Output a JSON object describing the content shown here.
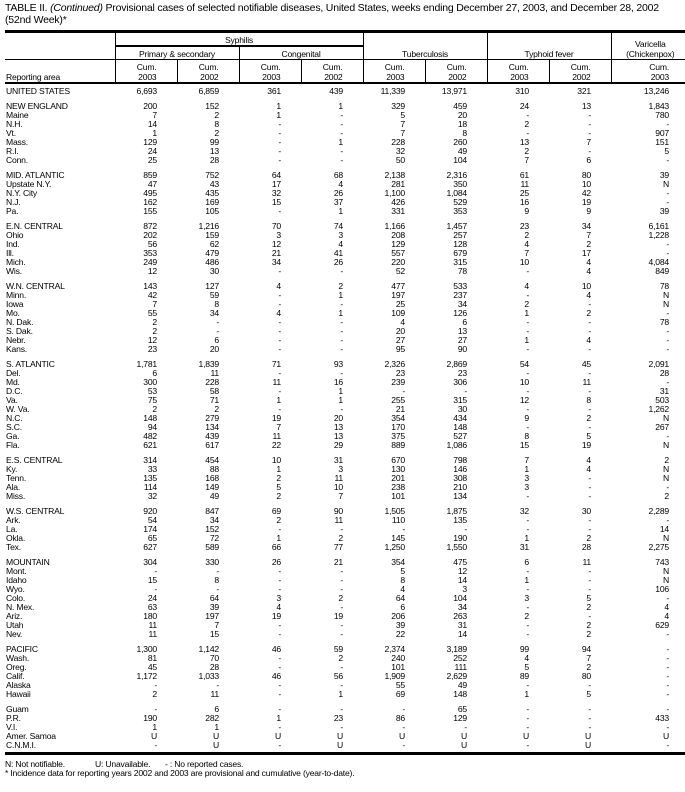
{
  "title": {
    "prefix": "TABLE II. ",
    "italic": "(Continued)",
    "text": " Provisional cases of selected notifiable diseases, United States, weeks ending December 27, 2003, and December 28, 2002 (52nd Week)*"
  },
  "header": {
    "reporting_area": "Reporting area",
    "syphilis": "Syphilis",
    "primary_secondary": "Primary & secondary",
    "congenital": "Congenital",
    "tuberculosis": "Tuberculosis",
    "typhoid": "Typhoid fever",
    "varicella_1": "Varicella",
    "varicella_2": "(Chickenpox)",
    "cum": [
      "Cum.",
      "Cum.",
      "Cum.",
      "Cum.",
      "Cum.",
      "Cum.",
      "Cum.",
      "Cum.",
      "Cum."
    ],
    "years": [
      "2003",
      "2002",
      "2003",
      "2002",
      "2003",
      "2002",
      "2003",
      "2002",
      "2003"
    ]
  },
  "rows": [
    {
      "area": "UNITED STATES",
      "v": [
        "6,693",
        "6,859",
        "361",
        "439",
        "11,339",
        "13,971",
        "310",
        "321",
        "13,246"
      ]
    },
    {
      "gap": true
    },
    {
      "area": "NEW ENGLAND",
      "v": [
        "200",
        "152",
        "1",
        "1",
        "329",
        "459",
        "24",
        "13",
        "1,843"
      ]
    },
    {
      "area": "Maine",
      "v": [
        "7",
        "2",
        "1",
        "-",
        "5",
        "20",
        "-",
        "-",
        "780"
      ]
    },
    {
      "area": "N.H.",
      "v": [
        "14",
        "8",
        "-",
        "-",
        "7",
        "18",
        "2",
        "-",
        "-"
      ]
    },
    {
      "area": "Vt.",
      "v": [
        "1",
        "2",
        "-",
        "-",
        "7",
        "8",
        "-",
        "-",
        "907"
      ]
    },
    {
      "area": "Mass.",
      "v": [
        "129",
        "99",
        "-",
        "1",
        "228",
        "260",
        "13",
        "7",
        "151"
      ]
    },
    {
      "area": "R.I.",
      "v": [
        "24",
        "13",
        "-",
        "-",
        "32",
        "49",
        "2",
        "-",
        "5"
      ]
    },
    {
      "area": "Conn.",
      "v": [
        "25",
        "28",
        "-",
        "-",
        "50",
        "104",
        "7",
        "6",
        "-"
      ]
    },
    {
      "gap": true
    },
    {
      "area": "MID. ATLANTIC",
      "v": [
        "859",
        "752",
        "64",
        "68",
        "2,138",
        "2,316",
        "61",
        "80",
        "39"
      ]
    },
    {
      "area": "Upstate N.Y.",
      "v": [
        "47",
        "43",
        "17",
        "4",
        "281",
        "350",
        "11",
        "10",
        "N"
      ]
    },
    {
      "area": "N.Y. City",
      "v": [
        "495",
        "435",
        "32",
        "26",
        "1,100",
        "1,084",
        "25",
        "42",
        "-"
      ]
    },
    {
      "area": "N.J.",
      "v": [
        "162",
        "169",
        "15",
        "37",
        "426",
        "529",
        "16",
        "19",
        "-"
      ]
    },
    {
      "area": "Pa.",
      "v": [
        "155",
        "105",
        "-",
        "1",
        "331",
        "353",
        "9",
        "9",
        "39"
      ]
    },
    {
      "gap": true
    },
    {
      "area": "E.N. CENTRAL",
      "v": [
        "872",
        "1,216",
        "70",
        "74",
        "1,166",
        "1,457",
        "23",
        "34",
        "6,161"
      ]
    },
    {
      "area": "Ohio",
      "v": [
        "202",
        "159",
        "3",
        "3",
        "208",
        "257",
        "2",
        "7",
        "1,228"
      ]
    },
    {
      "area": "Ind.",
      "v": [
        "56",
        "62",
        "12",
        "4",
        "129",
        "128",
        "4",
        "2",
        "-"
      ]
    },
    {
      "area": "Ill.",
      "v": [
        "353",
        "479",
        "21",
        "41",
        "557",
        "679",
        "7",
        "17",
        "-"
      ]
    },
    {
      "area": "Mich.",
      "v": [
        "249",
        "486",
        "34",
        "26",
        "220",
        "315",
        "10",
        "4",
        "4,084"
      ]
    },
    {
      "area": "Wis.",
      "v": [
        "12",
        "30",
        "-",
        "-",
        "52",
        "78",
        "-",
        "4",
        "849"
      ]
    },
    {
      "gap": true
    },
    {
      "area": "W.N. CENTRAL",
      "v": [
        "143",
        "127",
        "4",
        "2",
        "477",
        "533",
        "4",
        "10",
        "78"
      ]
    },
    {
      "area": "Minn.",
      "v": [
        "42",
        "59",
        "-",
        "1",
        "197",
        "237",
        "-",
        "4",
        "N"
      ]
    },
    {
      "area": "Iowa",
      "v": [
        "7",
        "8",
        "-",
        "-",
        "25",
        "34",
        "2",
        "-",
        "N"
      ]
    },
    {
      "area": "Mo.",
      "v": [
        "55",
        "34",
        "4",
        "1",
        "109",
        "126",
        "1",
        "2",
        "-"
      ]
    },
    {
      "area": "N. Dak.",
      "v": [
        "2",
        "-",
        "-",
        "-",
        "4",
        "6",
        "-",
        "-",
        "78"
      ]
    },
    {
      "area": "S. Dak.",
      "v": [
        "2",
        "-",
        "-",
        "-",
        "20",
        "13",
        "-",
        "-",
        "-"
      ]
    },
    {
      "area": "Nebr.",
      "v": [
        "12",
        "6",
        "-",
        "-",
        "27",
        "27",
        "1",
        "4",
        "-"
      ]
    },
    {
      "area": "Kans.",
      "v": [
        "23",
        "20",
        "-",
        "-",
        "95",
        "90",
        "-",
        "-",
        "-"
      ]
    },
    {
      "gap": true
    },
    {
      "area": "S. ATLANTIC",
      "v": [
        "1,781",
        "1,839",
        "71",
        "93",
        "2,326",
        "2,869",
        "54",
        "45",
        "2,091"
      ]
    },
    {
      "area": "Del.",
      "v": [
        "6",
        "11",
        "-",
        "-",
        "23",
        "23",
        "-",
        "-",
        "28"
      ]
    },
    {
      "area": "Md.",
      "v": [
        "300",
        "228",
        "11",
        "16",
        "239",
        "306",
        "10",
        "11",
        "-"
      ]
    },
    {
      "area": "D.C.",
      "v": [
        "53",
        "58",
        "-",
        "1",
        "-",
        "-",
        "-",
        "-",
        "31"
      ]
    },
    {
      "area": "Va.",
      "v": [
        "75",
        "71",
        "1",
        "1",
        "255",
        "315",
        "12",
        "8",
        "503"
      ]
    },
    {
      "area": "W. Va.",
      "v": [
        "2",
        "2",
        "-",
        "-",
        "21",
        "30",
        "-",
        "-",
        "1,262"
      ]
    },
    {
      "area": "N.C.",
      "v": [
        "148",
        "279",
        "19",
        "20",
        "354",
        "434",
        "9",
        "2",
        "N"
      ]
    },
    {
      "area": "S.C.",
      "v": [
        "94",
        "134",
        "7",
        "13",
        "170",
        "148",
        "-",
        "-",
        "267"
      ]
    },
    {
      "area": "Ga.",
      "v": [
        "482",
        "439",
        "11",
        "13",
        "375",
        "527",
        "8",
        "5",
        "-"
      ]
    },
    {
      "area": "Fla.",
      "v": [
        "621",
        "617",
        "22",
        "29",
        "889",
        "1,086",
        "15",
        "19",
        "N"
      ]
    },
    {
      "gap": true
    },
    {
      "area": "E.S. CENTRAL",
      "v": [
        "314",
        "454",
        "10",
        "31",
        "670",
        "798",
        "7",
        "4",
        "2"
      ]
    },
    {
      "area": "Ky.",
      "v": [
        "33",
        "88",
        "1",
        "3",
        "130",
        "146",
        "1",
        "4",
        "N"
      ]
    },
    {
      "area": "Tenn.",
      "v": [
        "135",
        "168",
        "2",
        "11",
        "201",
        "308",
        "3",
        "-",
        "N"
      ]
    },
    {
      "area": "Ala.",
      "v": [
        "114",
        "149",
        "5",
        "10",
        "238",
        "210",
        "3",
        "-",
        "-"
      ]
    },
    {
      "area": "Miss.",
      "v": [
        "32",
        "49",
        "2",
        "7",
        "101",
        "134",
        "-",
        "-",
        "2"
      ]
    },
    {
      "gap": true
    },
    {
      "area": "W.S. CENTRAL",
      "v": [
        "920",
        "847",
        "69",
        "90",
        "1,505",
        "1,875",
        "32",
        "30",
        "2,289"
      ]
    },
    {
      "area": "Ark.",
      "v": [
        "54",
        "34",
        "2",
        "11",
        "110",
        "135",
        "-",
        "-",
        "-"
      ]
    },
    {
      "area": "La.",
      "v": [
        "174",
        "152",
        "-",
        "-",
        "-",
        "-",
        "-",
        "-",
        "14"
      ]
    },
    {
      "area": "Okla.",
      "v": [
        "65",
        "72",
        "1",
        "2",
        "145",
        "190",
        "1",
        "2",
        "N"
      ]
    },
    {
      "area": "Tex.",
      "v": [
        "627",
        "589",
        "66",
        "77",
        "1,250",
        "1,550",
        "31",
        "28",
        "2,275"
      ]
    },
    {
      "gap": true
    },
    {
      "area": "MOUNTAIN",
      "v": [
        "304",
        "330",
        "26",
        "21",
        "354",
        "475",
        "6",
        "11",
        "743"
      ]
    },
    {
      "area": "Mont.",
      "v": [
        "-",
        "-",
        "-",
        "-",
        "5",
        "12",
        "-",
        "-",
        "N"
      ]
    },
    {
      "area": "Idaho",
      "v": [
        "15",
        "8",
        "-",
        "-",
        "8",
        "14",
        "1",
        "-",
        "N"
      ]
    },
    {
      "area": "Wyo.",
      "v": [
        "-",
        "-",
        "-",
        "-",
        "4",
        "3",
        "-",
        "-",
        "106"
      ]
    },
    {
      "area": "Colo.",
      "v": [
        "24",
        "64",
        "3",
        "2",
        "64",
        "104",
        "3",
        "5",
        "-"
      ]
    },
    {
      "area": "N. Mex.",
      "v": [
        "63",
        "39",
        "4",
        "-",
        "6",
        "34",
        "-",
        "2",
        "4"
      ]
    },
    {
      "area": "Ariz.",
      "v": [
        "180",
        "197",
        "19",
        "19",
        "206",
        "263",
        "2",
        "-",
        "4"
      ]
    },
    {
      "area": "Utah",
      "v": [
        "11",
        "7",
        "-",
        "-",
        "39",
        "31",
        "-",
        "2",
        "629"
      ]
    },
    {
      "area": "Nev.",
      "v": [
        "11",
        "15",
        "-",
        "-",
        "22",
        "14",
        "-",
        "2",
        "-"
      ]
    },
    {
      "gap": true
    },
    {
      "area": "PACIFIC",
      "v": [
        "1,300",
        "1,142",
        "46",
        "59",
        "2,374",
        "3,189",
        "99",
        "94",
        "-"
      ]
    },
    {
      "area": "Wash.",
      "v": [
        "81",
        "70",
        "-",
        "2",
        "240",
        "252",
        "4",
        "7",
        "-"
      ]
    },
    {
      "area": "Oreg.",
      "v": [
        "45",
        "28",
        "-",
        "-",
        "101",
        "111",
        "5",
        "2",
        "-"
      ]
    },
    {
      "area": "Calif.",
      "v": [
        "1,172",
        "1,033",
        "46",
        "56",
        "1,909",
        "2,629",
        "89",
        "80",
        "-"
      ]
    },
    {
      "area": "Alaska",
      "v": [
        "-",
        "-",
        "-",
        "-",
        "55",
        "49",
        "-",
        "-",
        "-"
      ]
    },
    {
      "area": "Hawaii",
      "v": [
        "2",
        "11",
        "-",
        "1",
        "69",
        "148",
        "1",
        "5",
        "-"
      ]
    },
    {
      "gap": true
    },
    {
      "area": "Guam",
      "v": [
        "-",
        "6",
        "-",
        "-",
        "-",
        "65",
        "-",
        "-",
        "-"
      ]
    },
    {
      "area": "P.R.",
      "v": [
        "190",
        "282",
        "1",
        "23",
        "86",
        "129",
        "-",
        "-",
        "433"
      ]
    },
    {
      "area": "V.I.",
      "v": [
        "1",
        "1",
        "-",
        "-",
        "-",
        "-",
        "-",
        "-",
        "-"
      ]
    },
    {
      "area": "Amer. Samoa",
      "v": [
        "U",
        "U",
        "U",
        "U",
        "U",
        "U",
        "U",
        "U",
        "U"
      ]
    },
    {
      "area": "C.N.M.I.",
      "v": [
        "-",
        "U",
        "-",
        "U",
        "-",
        "U",
        "-",
        "U",
        "-"
      ]
    }
  ],
  "footnotes": {
    "n": "N: Not notifiable.",
    "u": "U: Unavailable.",
    "dash": "- : No reported cases.",
    "star": "* Incidence data for reporting years 2002 and 2003 are provisional and cumulative (year-to-date)."
  }
}
